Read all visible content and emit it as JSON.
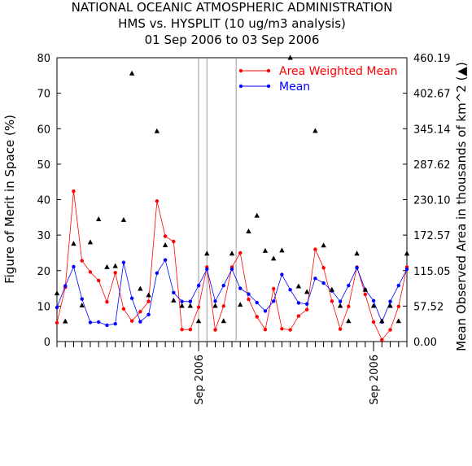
{
  "chart_data": {
    "type": "line",
    "title": [
      "NATIONAL OCEANIC ATMOSPHERIC ADMINISTRATION",
      "HMS vs. HYSPLIT (10 ug/m3 analysis)",
      "01 Sep 2006 to 03 Sep 2006"
    ],
    "ylabel_left": "Figure of Merit in Space (%)",
    "ylabel_right": "Mean Observed Area in thousands of km^2 (▲)",
    "ylim_left": [
      0,
      80
    ],
    "yticks_left": [
      "0",
      "10",
      "20",
      "30",
      "40",
      "50",
      "60",
      "70",
      "80"
    ],
    "yticks_right": [
      "0.00",
      "57.52",
      "115.05",
      "172.57",
      "230.10",
      "287.62",
      "345.14",
      "402.67",
      "460.19"
    ],
    "x_count": 43,
    "x_tick_labels": [
      {
        "x": 17,
        "text": "Sep 2006"
      },
      {
        "x": 38,
        "text": "Sep 2006"
      }
    ],
    "vertical_lines_x": [
      17,
      18,
      21.5
    ],
    "legend": [
      {
        "name": "Area Weighted Mean",
        "color": "#ff0000"
      },
      {
        "name": "Mean",
        "color": "#0000ff"
      }
    ],
    "series": [
      {
        "name": "Area Weighted Mean",
        "color": "#ff0000",
        "marker": "circle",
        "values": [
          5.3,
          15.3,
          42.4,
          22.8,
          19.6,
          17.2,
          11.2,
          19.4,
          9.2,
          5.8,
          8.4,
          11.3,
          39.6,
          29.7,
          28.2,
          3.4,
          3.4,
          9.7,
          21.0,
          3.3,
          10.0,
          21.0,
          25.0,
          11.9,
          7.0,
          3.4,
          14.9,
          3.6,
          3.3,
          7.2,
          9.0,
          26.0,
          20.8,
          11.4,
          3.5,
          9.9,
          21.0,
          13.3,
          5.5,
          0.5,
          3.3,
          9.9,
          21.0
        ]
      },
      {
        "name": "Mean",
        "color": "#0000ff",
        "marker": "circle",
        "values": [
          9.6,
          15.7,
          21.1,
          12.0,
          5.4,
          5.5,
          4.6,
          5.0,
          22.3,
          12.2,
          5.6,
          7.6,
          19.3,
          23.0,
          13.8,
          11.3,
          11.3,
          15.8,
          20.4,
          11.4,
          15.8,
          20.4,
          15.0,
          13.4,
          11.0,
          8.6,
          11.4,
          18.9,
          14.6,
          10.9,
          10.6,
          17.8,
          16.5,
          14.3,
          11.3,
          15.8,
          20.8,
          14.6,
          11.5,
          5.5,
          11.3,
          15.8,
          20.4
        ]
      },
      {
        "name": "Mean Observed Area",
        "color": "#000000",
        "marker": "triangle",
        "axis": "right",
        "values": [
          13.6,
          5.7,
          27.6,
          10.2,
          28.0,
          34.5,
          21.0,
          21.3,
          34.3,
          75.6,
          14.9,
          13.1,
          59.3,
          27.2,
          11.6,
          10.1,
          10.1,
          5.8,
          24.8,
          10.1,
          5.8,
          24.8,
          10.4,
          31.1,
          35.5,
          25.6,
          23.4,
          25.7,
          80.0,
          15.6,
          14.0,
          59.4,
          27.1,
          14.6,
          10.1,
          5.8,
          24.8,
          14.6,
          10.1,
          5.8,
          10.1,
          5.8,
          24.8
        ]
      }
    ]
  }
}
